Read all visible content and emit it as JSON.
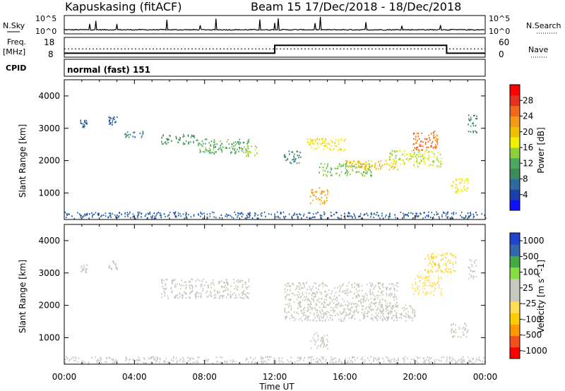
{
  "header": {
    "station": "Kapuskasing (fitACF)",
    "beam_date": "Beam 15  17/Dec/2018 - 18/Dec/2018"
  },
  "strip_labels": {
    "nsky": "N.Sky",
    "freq_line1": "Freq.",
    "freq_line2": "[MHz]",
    "cpid": "CPID",
    "nsearch": "N.Search",
    "nave": "Nave",
    "cpid_value": "normal (fast) 151"
  },
  "strip_ticks": {
    "nsky_top": "10^5",
    "nsky_bottom": "10^0",
    "freq_top": "18",
    "freq_bottom": "8",
    "nave_top": "60",
    "nave_bottom": "0"
  },
  "x_axis": {
    "label": "Time UT",
    "ticks": [
      "00:00",
      "04:00",
      "08:00",
      "12:00",
      "16:00",
      "20:00",
      "00:00"
    ]
  },
  "colors": {
    "power_scale": [
      "#1010ff",
      "#1c3fa8",
      "#2e6aa0",
      "#3d8a5a",
      "#4ca860",
      "#8fcf3a",
      "#f0f000",
      "#f0c000",
      "#f59a18",
      "#f06818",
      "#e63020",
      "#ff0000"
    ],
    "velocity_scale": [
      "#ff0000",
      "#f4501c",
      "#ff9900",
      "#ffcc00",
      "#ffdd55",
      "#c8c8bf",
      "#c8c8bf",
      "#88dd44",
      "#44aa44",
      "#3366aa",
      "#2244cc"
    ],
    "ground_scatter": "#c8c8bf"
  },
  "chart_data": [
    {
      "type": "heatmap",
      "name": "power",
      "xlabel": "Time UT",
      "ylabel": "Slant Range [km]",
      "xlim": [
        0,
        24
      ],
      "ylim": [
        180,
        4500
      ],
      "yticks": [
        1000,
        2000,
        3000,
        4000
      ],
      "colorbar": {
        "label": "Power [dB]",
        "min": 0,
        "max": 32,
        "ticks": [
          4,
          8,
          12,
          16,
          20,
          24,
          28
        ]
      },
      "regions": [
        {
          "t0": 0.9,
          "t1": 1.3,
          "r0": 3000,
          "r1": 3250,
          "db": 6
        },
        {
          "t0": 2.5,
          "t1": 3.0,
          "r0": 3100,
          "r1": 3350,
          "db": 5
        },
        {
          "t0": 3.4,
          "t1": 4.5,
          "r0": 2700,
          "r1": 2900,
          "db": 8
        },
        {
          "t0": 5.5,
          "t1": 7.5,
          "r0": 2500,
          "r1": 2800,
          "db": 10
        },
        {
          "t0": 7.5,
          "t1": 10.5,
          "r0": 2200,
          "r1": 2650,
          "db": 12
        },
        {
          "t0": 10.2,
          "t1": 11.0,
          "r0": 2100,
          "r1": 2450,
          "db": 15
        },
        {
          "t0": 12.5,
          "t1": 13.5,
          "r0": 1900,
          "r1": 2300,
          "db": 9
        },
        {
          "t0": 13.8,
          "t1": 16.0,
          "r0": 2300,
          "r1": 2700,
          "db": 18
        },
        {
          "t0": 14.0,
          "t1": 15.0,
          "r0": 650,
          "r1": 1150,
          "db": 22
        },
        {
          "t0": 14.5,
          "t1": 17.5,
          "r0": 1500,
          "r1": 1900,
          "db": 14
        },
        {
          "t0": 16.0,
          "t1": 19.0,
          "r0": 1700,
          "r1": 2000,
          "db": 20
        },
        {
          "t0": 18.5,
          "t1": 21.5,
          "r0": 1800,
          "r1": 2300,
          "db": 16
        },
        {
          "t0": 19.8,
          "t1": 21.3,
          "r0": 2300,
          "r1": 2900,
          "db": 25
        },
        {
          "t0": 22.0,
          "t1": 23.0,
          "r0": 1000,
          "r1": 1450,
          "db": 18
        },
        {
          "t0": 23.0,
          "t1": 23.5,
          "r0": 2800,
          "r1": 3400,
          "db": 9
        },
        {
          "t0": 0.0,
          "t1": 24.0,
          "r0": 200,
          "r1": 400,
          "db": 6
        }
      ]
    },
    {
      "type": "heatmap",
      "name": "velocity",
      "xlabel": "Time UT",
      "ylabel": "Slant Range [km]",
      "xlim": [
        0,
        24
      ],
      "ylim": [
        180,
        4500
      ],
      "yticks": [
        1000,
        2000,
        3000,
        4000
      ],
      "colorbar": {
        "label": "Velocity [m s^-1]",
        "min": -1500,
        "max": 1500,
        "ticks": [
          1000,
          500,
          100,
          25,
          -25,
          -100,
          -500,
          -1000
        ]
      },
      "regions": [
        {
          "t0": 0.9,
          "t1": 1.3,
          "r0": 3000,
          "r1": 3250,
          "v": 0
        },
        {
          "t0": 2.5,
          "t1": 3.0,
          "r0": 3100,
          "r1": 3350,
          "v": 0
        },
        {
          "t0": 5.5,
          "t1": 10.5,
          "r0": 2200,
          "r1": 2800,
          "v": 0
        },
        {
          "t0": 12.5,
          "t1": 19.0,
          "r0": 1500,
          "r1": 2700,
          "v": 0
        },
        {
          "t0": 14.0,
          "t1": 15.0,
          "r0": 650,
          "r1": 1150,
          "v": 0
        },
        {
          "t0": 18.0,
          "t1": 20.0,
          "r0": 1500,
          "r1": 2000,
          "v": 120
        },
        {
          "t0": 19.8,
          "t1": 21.5,
          "r0": 2300,
          "r1": 2900,
          "v": -300
        },
        {
          "t0": 20.5,
          "t1": 22.3,
          "r0": 3000,
          "r1": 3600,
          "v": -400
        },
        {
          "t0": 22.0,
          "t1": 23.0,
          "r0": 1000,
          "r1": 1450,
          "v": 90
        },
        {
          "t0": 23.0,
          "t1": 23.5,
          "r0": 2800,
          "r1": 3400,
          "v": 0
        },
        {
          "t0": 0.0,
          "t1": 24.0,
          "r0": 200,
          "r1": 400,
          "v": -60
        }
      ]
    }
  ],
  "strip_data": {
    "freq_mhz": {
      "range": [
        8,
        18
      ],
      "steps": [
        {
          "t0": 0,
          "t1": 12,
          "v": 10
        },
        {
          "t0": 12,
          "t1": 21.8,
          "v": 14
        },
        {
          "t0": 21.8,
          "t1": 24,
          "v": 10
        }
      ]
    },
    "nave": {
      "range": [
        0,
        60
      ],
      "dotted_level": 25
    },
    "nsky_log": {
      "range": [
        0,
        5
      ],
      "baseline": 1
    }
  }
}
